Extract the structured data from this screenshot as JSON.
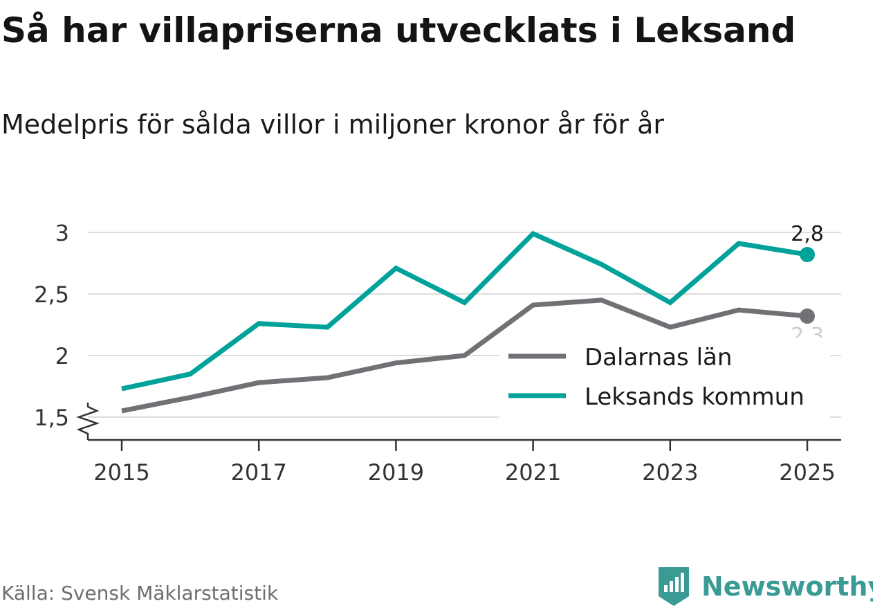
{
  "title": "Så har villapriserna utvecklats i Leksand",
  "subtitle": "Medelpris för sålda villor i miljoner kronor år för år",
  "source": "Källa: Svensk Mäklarstatistik",
  "brand": "Newsworthy",
  "colors": {
    "dalarna": "#707075",
    "leksand": "#00a29a",
    "grid": "#dddddd",
    "axis": "#333333",
    "brand": "#3a9a94"
  },
  "chart_data": {
    "type": "line",
    "title": "Så har villapriserna utvecklats i Leksand",
    "subtitle": "Medelpris för sålda villor i miljoner kronor år för år",
    "xlabel": "",
    "ylabel": "",
    "x": [
      2015,
      2016,
      2017,
      2018,
      2019,
      2020,
      2021,
      2022,
      2023,
      2024,
      2025
    ],
    "x_tick_labels": [
      "2015",
      "2017",
      "2019",
      "2021",
      "2023",
      "2025"
    ],
    "x_tick_values": [
      2015,
      2017,
      2019,
      2021,
      2023,
      2025
    ],
    "y_ticks": [
      1.5,
      2,
      2.5,
      3
    ],
    "y_tick_labels": [
      "1,5",
      "2",
      "2,5",
      "3"
    ],
    "ylim": [
      1.5,
      3
    ],
    "grid": true,
    "axis_break": true,
    "legend_position": "bottom-right",
    "series": [
      {
        "name": "Dalarnas län",
        "color": "#707075",
        "values": [
          1.55,
          1.66,
          1.78,
          1.82,
          1.94,
          2.0,
          2.41,
          2.45,
          2.23,
          2.37,
          2.32
        ],
        "end_label": "2,3",
        "end_label_placement": "below"
      },
      {
        "name": "Leksands kommun",
        "color": "#00a29a",
        "values": [
          1.73,
          1.85,
          2.26,
          2.23,
          2.71,
          2.43,
          2.99,
          2.74,
          2.43,
          2.91,
          2.82
        ],
        "end_label": "2,8",
        "end_label_placement": "above"
      }
    ]
  }
}
